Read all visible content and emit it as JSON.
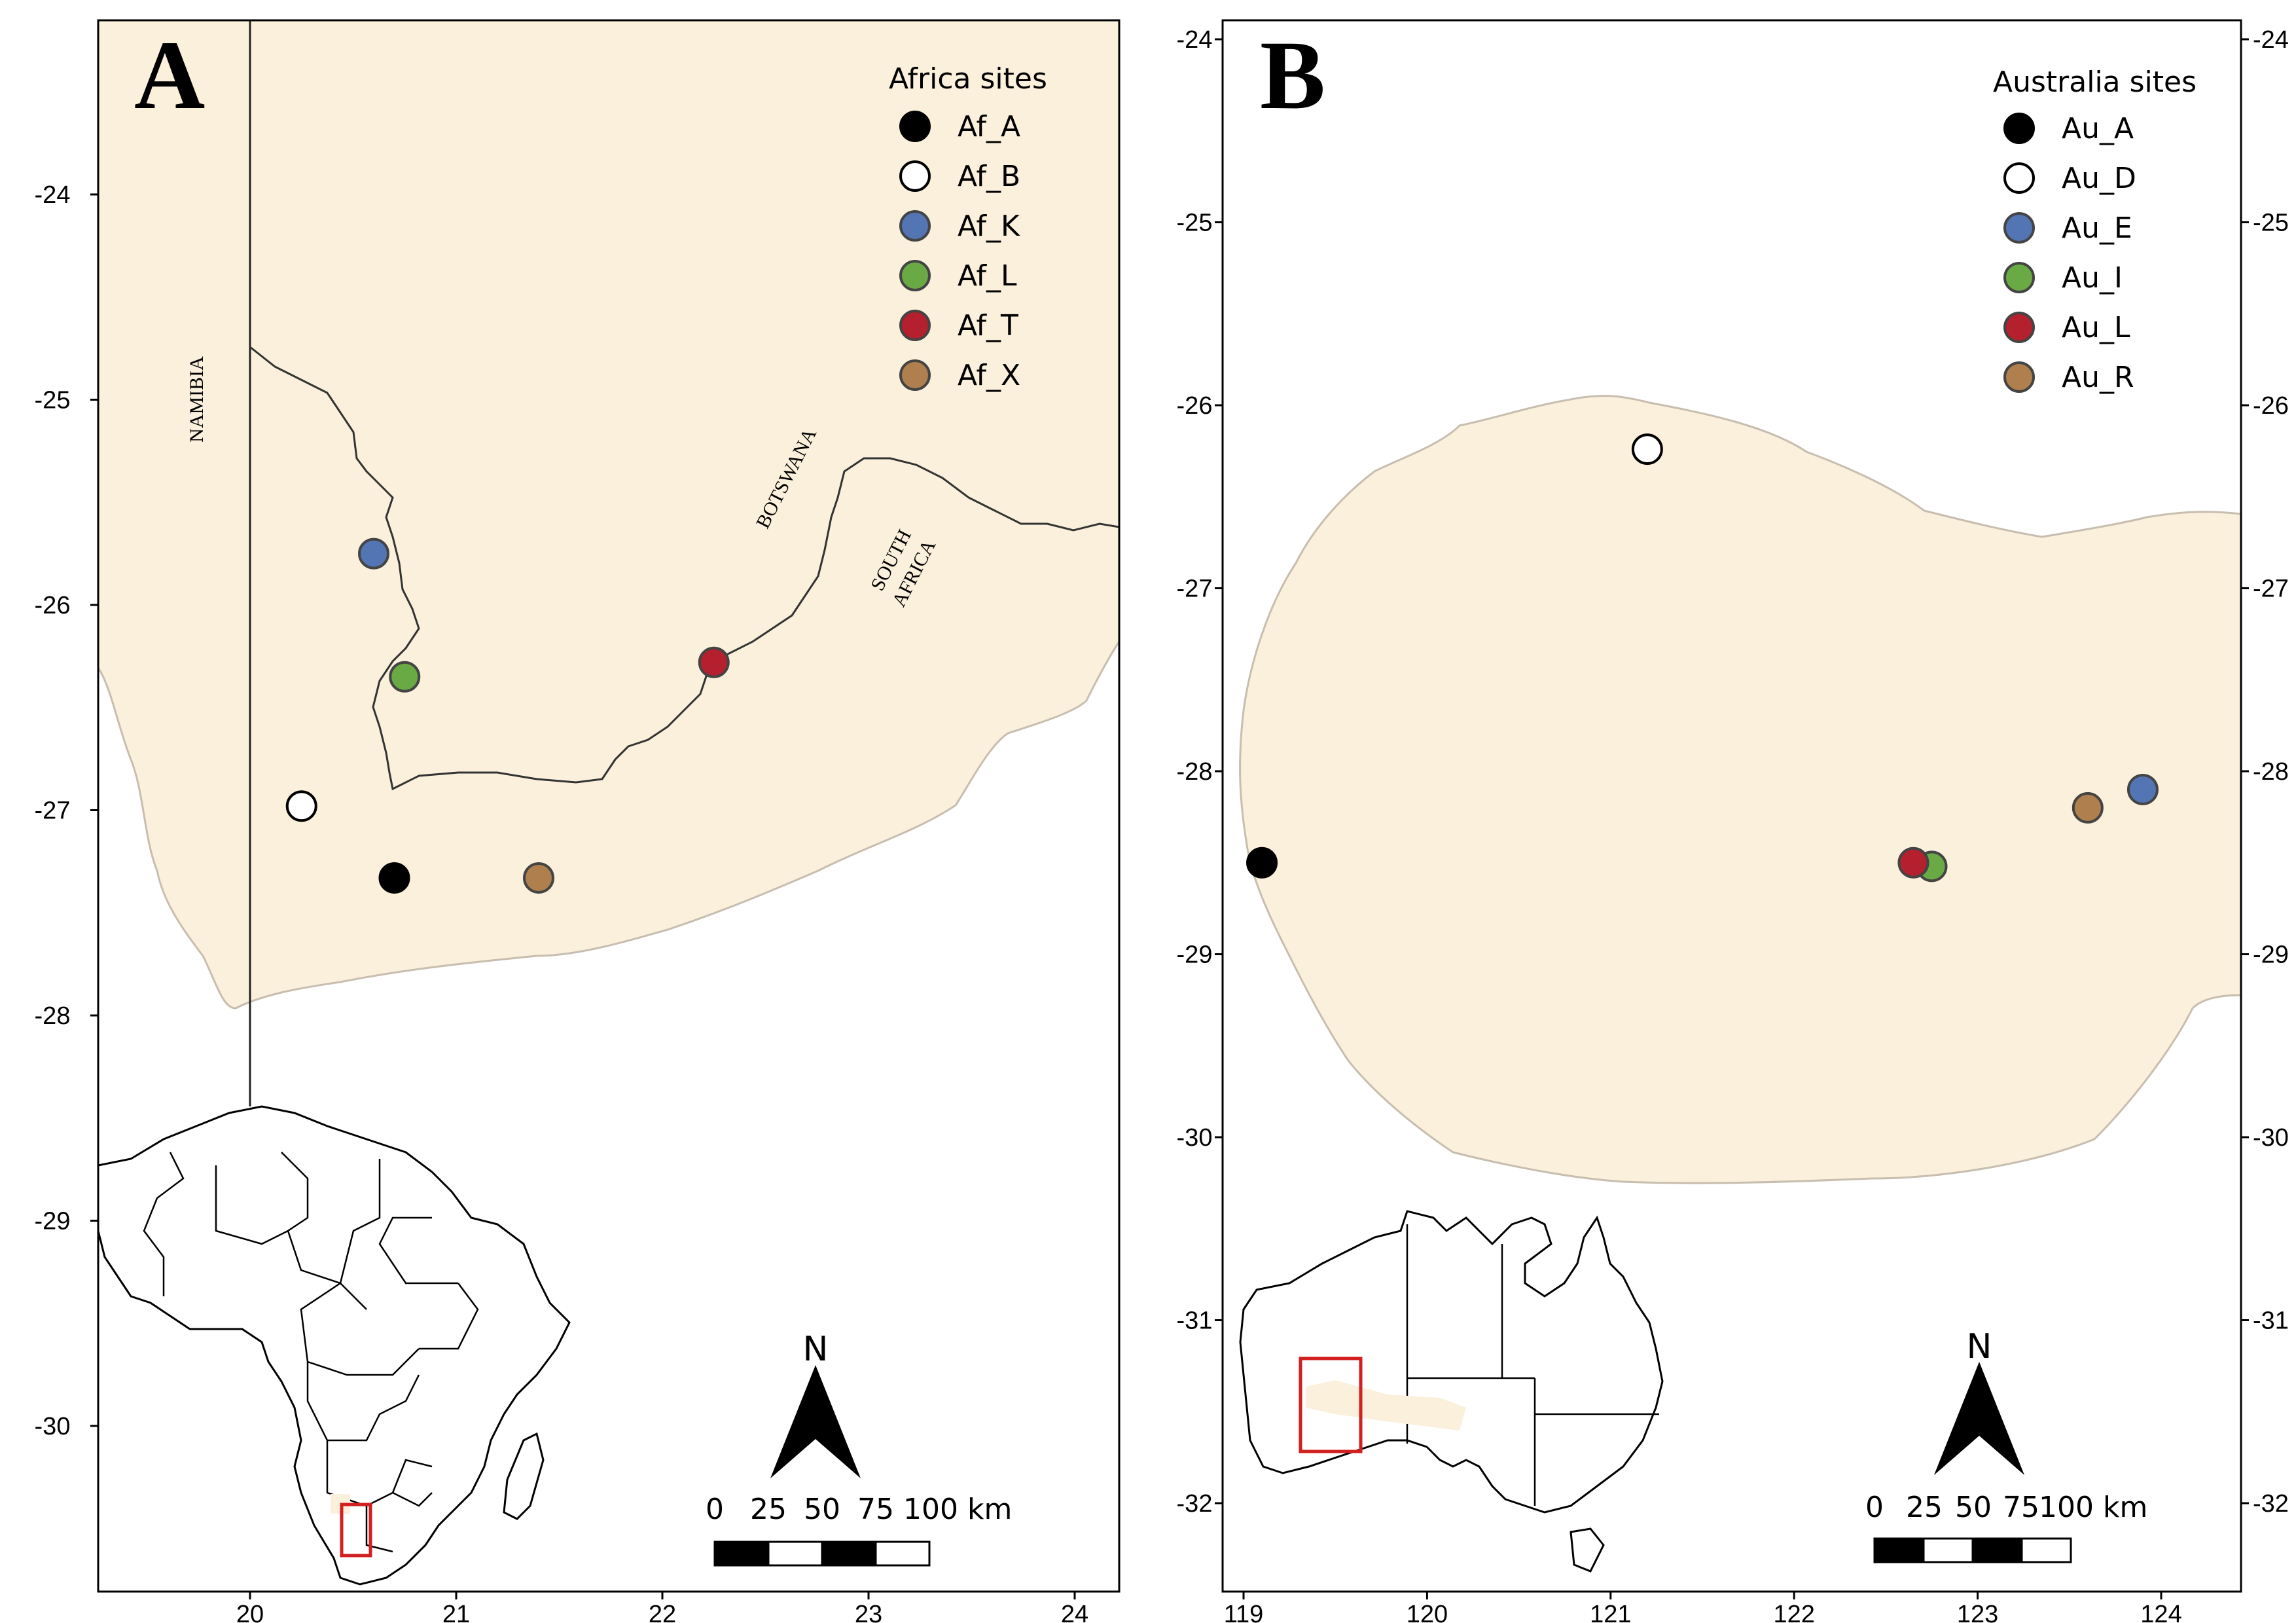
{
  "colors": {
    "land": "#FAF0DC",
    "land_border": "#C8BEB0",
    "Black": "#000000",
    "White": "#ffffff",
    "Blue": "#5375B4",
    "Green": "#6AAA44",
    "Red": "#B5202E",
    "Brown": "#B07F4E",
    "inset_box": "#D21F1F"
  },
  "panel_a": {
    "letter": "A",
    "legend_title": "Africa sites",
    "country_labels": [
      "NAMIBIA",
      "BOTSWANA",
      "SOUTH",
      "AFRICA"
    ],
    "x_ticks": [
      "20",
      "21",
      "22",
      "23",
      "24"
    ],
    "y_ticks": [
      "-24",
      "-25",
      "-26",
      "-27",
      "-28",
      "-29",
      "-30"
    ],
    "scale": {
      "labels": [
        "0",
        "25",
        "50",
        "75",
        "100 km"
      ]
    },
    "north": "N",
    "sites": [
      {
        "name": "Af_A",
        "lon": 20.7,
        "lat": -27.33,
        "color": "Black"
      },
      {
        "name": "Af_B",
        "lon": 20.25,
        "lat": -26.98,
        "color": "White"
      },
      {
        "name": "Af_K",
        "lon": 20.6,
        "lat": -25.75,
        "color": "Blue"
      },
      {
        "name": "Af_L",
        "lon": 20.75,
        "lat": -26.35,
        "color": "Green"
      },
      {
        "name": "Af_T",
        "lon": 22.25,
        "lat": -26.28,
        "color": "Red"
      },
      {
        "name": "Af_X",
        "lon": 21.4,
        "lat": -27.33,
        "color": "Brown"
      }
    ]
  },
  "panel_b": {
    "letter": "B",
    "legend_title": "Australia sites",
    "x_ticks": [
      "119",
      "120",
      "121",
      "122",
      "123",
      "124"
    ],
    "y_ticks": [
      "-24",
      "-25",
      "-26",
      "-27",
      "-28",
      "-29",
      "-30",
      "-31",
      "-32"
    ],
    "scale": {
      "labels": [
        "0",
        "25",
        "50",
        "75",
        "100 km"
      ]
    },
    "north": "N",
    "sites": [
      {
        "name": "Au_A",
        "lon": 119.1,
        "lat": -28.5,
        "color": "Black"
      },
      {
        "name": "Au_D",
        "lon": 121.2,
        "lat": -26.24,
        "color": "White"
      },
      {
        "name": "Au_E",
        "lon": 123.9,
        "lat": -28.1,
        "color": "Blue"
      },
      {
        "name": "Au_I",
        "lon": 122.75,
        "lat": -28.52,
        "color": "Green"
      },
      {
        "name": "Au_L",
        "lon": 122.65,
        "lat": -28.5,
        "color": "Red"
      },
      {
        "name": "Au_R",
        "lon": 123.6,
        "lat": -28.2,
        "color": "Brown"
      }
    ]
  }
}
